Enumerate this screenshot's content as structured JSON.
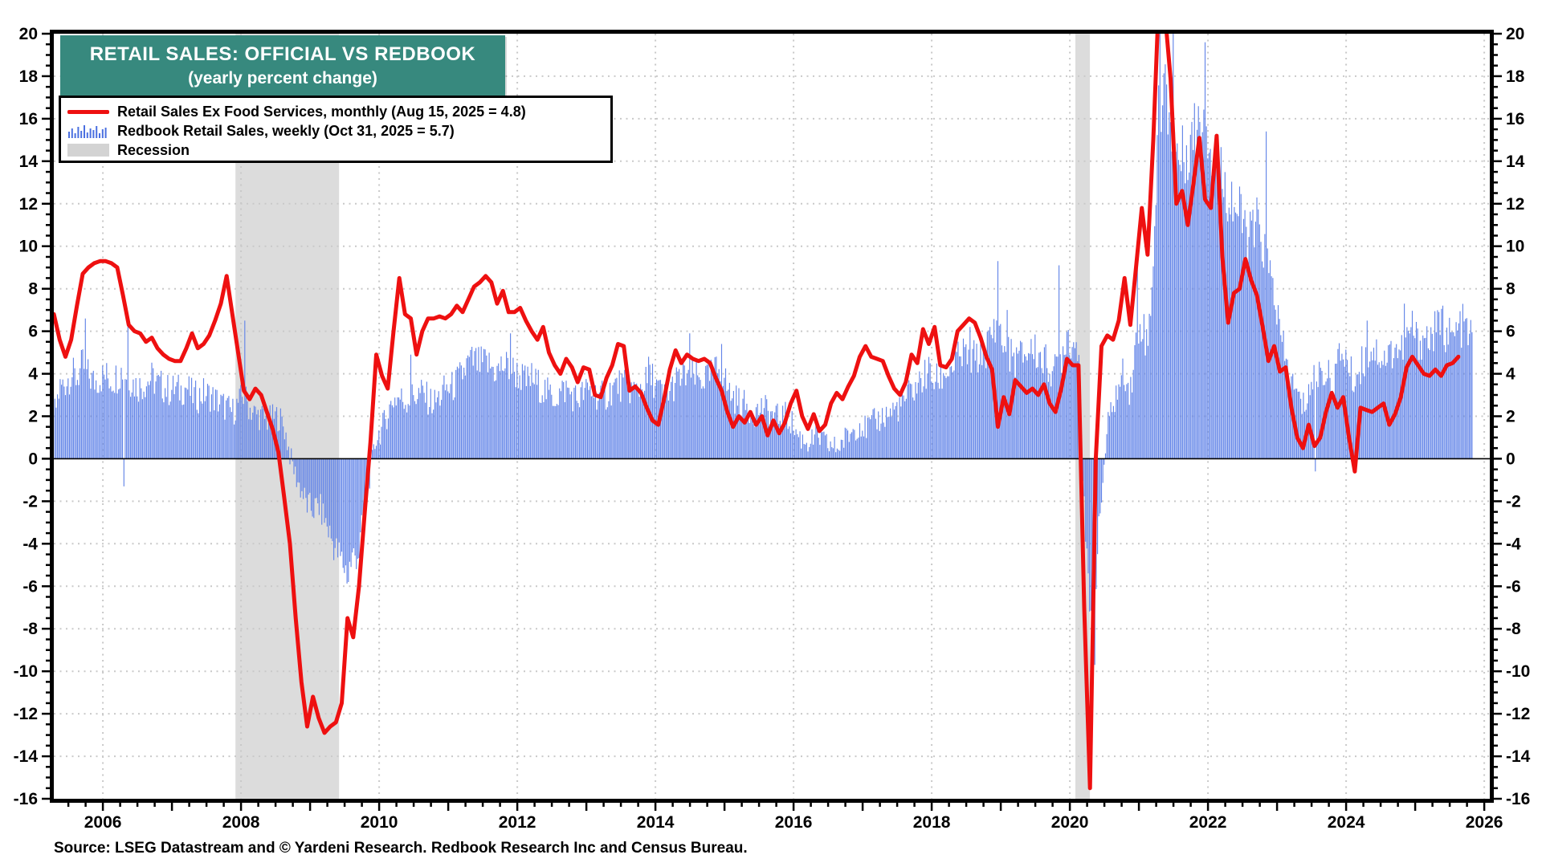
{
  "header": {
    "title": "RETAIL SALES: OFFICIAL VS REDBOOK",
    "subtitle": "(yearly percent change)",
    "title_bg": "#37897e",
    "title_color": "#ffffff"
  },
  "legend": {
    "items": [
      {
        "label": "Retail Sales Ex Food Services, monthly (Aug 15, 2025 = 4.8)",
        "swatch": "red-line",
        "color": "#ee1010"
      },
      {
        "label": "Redbook Retail Sales, weekly (Oct 31, 2025 = 5.7)",
        "swatch": "blue-bars",
        "color": "#4a6fe0"
      },
      {
        "label": "Recession",
        "swatch": "gray-box",
        "color": "#d3d3d3"
      }
    ]
  },
  "source": "Source: LSEG Datastream and © Yardeni Research. Redbook Research Inc and Census Bureau.",
  "chart_data": {
    "type": "line+bar",
    "title": "RETAIL SALES: OFFICIAL VS REDBOOK (yearly percent change)",
    "x_axis": {
      "min": 2005.29,
      "max": 2026.08,
      "label_years": [
        2006,
        2008,
        2010,
        2012,
        2014,
        2016,
        2018,
        2020,
        2022,
        2024,
        2026
      ],
      "year_tick_interval": 1,
      "minor_tick_interval": 0.25
    },
    "y_axis": {
      "min": -16,
      "max": 20,
      "tick_interval": 2,
      "minor_tick_interval": 0.5,
      "labels_both_sides": true
    },
    "grid": {
      "h_interval": 2,
      "v_years": [
        2006,
        2008,
        2010,
        2012,
        2014,
        2016,
        2018,
        2020,
        2022,
        2024,
        2026
      ],
      "color": "#c9c9c9",
      "style": "dotted"
    },
    "zero_line_color": "#000000",
    "recessions": [
      {
        "start": 2007.92,
        "end": 2009.42
      },
      {
        "start": 2020.08,
        "end": 2020.29
      }
    ],
    "recession_color": "#dcdcdc",
    "series": [
      {
        "name": "Retail Sales Ex Food Services, monthly",
        "type": "line",
        "color": "#ee1010",
        "width": 5,
        "start_year": 2005,
        "start_month": 4,
        "frequency": "monthly",
        "last_point_label": "Aug 15, 2025 = 4.8",
        "values": [
          6.8,
          5.6,
          4.8,
          5.6,
          7.2,
          8.7,
          9.0,
          9.2,
          9.3,
          9.3,
          9.2,
          9.0,
          7.7,
          6.3,
          6.0,
          5.9,
          5.5,
          5.7,
          5.2,
          4.9,
          4.7,
          4.6,
          4.6,
          5.2,
          5.9,
          5.2,
          5.4,
          5.8,
          6.5,
          7.3,
          8.6,
          6.8,
          5.0,
          3.2,
          2.8,
          3.3,
          3.0,
          2.2,
          1.4,
          0.3,
          -1.8,
          -4.0,
          -7.5,
          -10.5,
          -12.6,
          -11.2,
          -12.2,
          -12.9,
          -12.6,
          -12.4,
          -11.5,
          -7.5,
          -8.4,
          -6.0,
          -2.5,
          0.8,
          4.9,
          3.9,
          3.3,
          6.0,
          8.5,
          6.8,
          6.6,
          4.9,
          6.0,
          6.6,
          6.6,
          6.7,
          6.6,
          6.8,
          7.2,
          6.9,
          7.5,
          8.1,
          8.3,
          8.6,
          8.3,
          7.3,
          7.9,
          6.9,
          6.9,
          7.1,
          6.5,
          6.0,
          5.6,
          6.2,
          5.0,
          4.4,
          4.0,
          4.7,
          4.3,
          3.6,
          4.3,
          4.2,
          3.0,
          2.9,
          3.8,
          4.4,
          5.4,
          5.3,
          3.2,
          3.4,
          3.1,
          2.4,
          1.8,
          1.6,
          2.8,
          4.2,
          5.1,
          4.5,
          4.9,
          4.7,
          4.6,
          4.7,
          4.5,
          3.8,
          3.2,
          2.2,
          1.5,
          2.0,
          1.7,
          2.2,
          1.6,
          2.0,
          1.1,
          1.8,
          1.2,
          1.7,
          2.6,
          3.2,
          2.0,
          1.4,
          2.1,
          1.3,
          1.6,
          2.6,
          3.1,
          2.8,
          3.4,
          3.9,
          4.8,
          5.3,
          4.8,
          4.7,
          4.6,
          3.9,
          3.3,
          3.0,
          3.6,
          4.9,
          4.5,
          6.1,
          5.4,
          6.2,
          4.4,
          4.3,
          4.7,
          6.0,
          6.3,
          6.6,
          6.4,
          5.7,
          4.8,
          4.2,
          1.5,
          2.9,
          2.1,
          3.7,
          3.4,
          3.1,
          3.3,
          3.0,
          3.5,
          2.6,
          2.2,
          3.3,
          4.7,
          4.4,
          4.4,
          -7.0,
          -15.5,
          0.0,
          5.3,
          5.8,
          5.6,
          6.5,
          8.5,
          6.3,
          9.0,
          11.8,
          9.6,
          15.0,
          22.0,
          21.0,
          17.9,
          12.0,
          12.6,
          11.0,
          13.0,
          15.1,
          12.2,
          11.8,
          15.2,
          9.5,
          6.4,
          7.8,
          8.0,
          9.4,
          8.4,
          7.7,
          6.2,
          4.6,
          5.3,
          4.1,
          4.3,
          2.4,
          1.0,
          0.5,
          1.6,
          0.6,
          1.0,
          2.2,
          3.1,
          2.4,
          2.9,
          1.0,
          -0.6,
          2.4,
          2.3,
          2.2,
          2.4,
          2.6,
          1.6,
          2.1,
          2.9,
          4.3,
          4.8,
          4.4,
          4.0,
          3.9,
          4.2,
          3.9,
          4.4,
          4.5,
          4.8
        ]
      },
      {
        "name": "Redbook Retail Sales, weekly",
        "type": "bar",
        "color": "#6385e8",
        "bar_width": 1.15,
        "start_year": 2005,
        "start_month": 4,
        "frequency": "monthly_anchors_rendered_weekly",
        "weekly_step_years": 0.01923,
        "weekly_jitter": 0.55,
        "end_t": 2025.835,
        "last_point_label": "Oct 31, 2025 = 5.7",
        "values": [
          2.0,
          3.3,
          3.6,
          4.0,
          3.8,
          4.4,
          3.9,
          3.6,
          3.8,
          3.9,
          3.7,
          3.9,
          4.2,
          3.8,
          3.5,
          3.4,
          3.6,
          3.8,
          3.5,
          3.4,
          3.2,
          3.3,
          3.2,
          3.4,
          3.0,
          2.9,
          3.1,
          3.0,
          2.8,
          2.6,
          2.4,
          2.2,
          2.6,
          3.0,
          2.4,
          2.1,
          2.0,
          1.8,
          1.9,
          2.0,
          1.5,
          0.2,
          -0.8,
          -1.5,
          -2.2,
          -2.4,
          -2.2,
          -2.8,
          -3.6,
          -4.3,
          -4.8,
          -5.4,
          -4.6,
          -4.4,
          -2.2,
          -0.6,
          1.0,
          1.4,
          2.2,
          2.8,
          2.9,
          2.7,
          2.9,
          3.0,
          3.1,
          2.8,
          2.6,
          2.9,
          3.3,
          3.3,
          3.6,
          4.0,
          4.5,
          4.6,
          4.4,
          4.5,
          4.3,
          4.1,
          4.4,
          4.3,
          4.1,
          3.9,
          3.6,
          3.8,
          3.5,
          3.3,
          3.0,
          2.9,
          3.1,
          3.3,
          3.0,
          2.8,
          3.1,
          3.2,
          3.1,
          2.9,
          3.0,
          3.3,
          3.5,
          3.4,
          3.3,
          3.2,
          3.4,
          3.6,
          3.8,
          3.3,
          2.9,
          3.2,
          3.6,
          3.8,
          4.0,
          3.9,
          3.7,
          3.8,
          3.9,
          4.1,
          4.4,
          3.3,
          2.9,
          2.7,
          2.5,
          2.3,
          2.2,
          2.4,
          2.2,
          2.0,
          1.9,
          2.0,
          1.8,
          1.2,
          0.9,
          0.8,
          0.9,
          1.0,
          0.7,
          0.6,
          0.5,
          0.8,
          1.1,
          1.4,
          1.7,
          1.4,
          1.6,
          1.8,
          2.0,
          2.1,
          2.3,
          2.5,
          2.8,
          3.2,
          3.4,
          3.8,
          4.1,
          3.6,
          3.8,
          4.1,
          4.3,
          4.6,
          4.9,
          4.8,
          4.7,
          4.9,
          5.2,
          5.8,
          6.3,
          5.2,
          4.9,
          4.7,
          4.8,
          5.0,
          5.2,
          4.9,
          4.6,
          4.3,
          4.1,
          4.8,
          6.0,
          5.3,
          5.6,
          -2.5,
          -8.0,
          -5.5,
          -1.8,
          1.4,
          2.6,
          3.3,
          4.2,
          3.1,
          5.5,
          6.6,
          5.2,
          9.5,
          16.5,
          17.5,
          16.0,
          14.5,
          14.0,
          14.8,
          15.2,
          16.0,
          16.5,
          14.5,
          13.8,
          13.2,
          12.6,
          12.0,
          11.4,
          10.8,
          10.4,
          11.0,
          10.2,
          8.8,
          8.0,
          5.8,
          4.6,
          3.6,
          3.0,
          2.4,
          3.2,
          3.8,
          4.2,
          4.0,
          3.6,
          4.4,
          5.2,
          4.2,
          3.6,
          4.4,
          4.8,
          5.2,
          5.0,
          4.7,
          4.9,
          5.3,
          5.0,
          5.6,
          6.2,
          5.4,
          5.8,
          5.6,
          6.0,
          6.3,
          5.9,
          5.6,
          6.1,
          6.3,
          5.7
        ],
        "spikes": [
          {
            "t": 2005.75,
            "v": 6.6
          },
          {
            "t": 2006.3,
            "v": -1.3
          },
          {
            "t": 2006.36,
            "v": 6.3
          },
          {
            "t": 2008.05,
            "v": 6.5
          },
          {
            "t": 2009.55,
            "v": -5.8
          },
          {
            "t": 2010.45,
            "v": 4.9
          },
          {
            "t": 2011.9,
            "v": 5.9
          },
          {
            "t": 2013.9,
            "v": 4.8
          },
          {
            "t": 2014.5,
            "v": 5.9
          },
          {
            "t": 2014.95,
            "v": 5.4
          },
          {
            "t": 2018.55,
            "v": 6.2
          },
          {
            "t": 2018.95,
            "v": 9.3
          },
          {
            "t": 2019.1,
            "v": 7.0
          },
          {
            "t": 2019.85,
            "v": 9.1
          },
          {
            "t": 2020.37,
            "v": -9.7
          },
          {
            "t": 2020.98,
            "v": 9.1
          },
          {
            "t": 2021.3,
            "v": 21.0
          },
          {
            "t": 2021.5,
            "v": 20.6
          },
          {
            "t": 2021.95,
            "v": 19.6
          },
          {
            "t": 2022.85,
            "v": 15.4
          },
          {
            "t": 2023.55,
            "v": -0.6
          },
          {
            "t": 2024.3,
            "v": 6.5
          },
          {
            "t": 2024.85,
            "v": 7.3
          },
          {
            "t": 2025.4,
            "v": 7.2
          }
        ]
      }
    ]
  }
}
